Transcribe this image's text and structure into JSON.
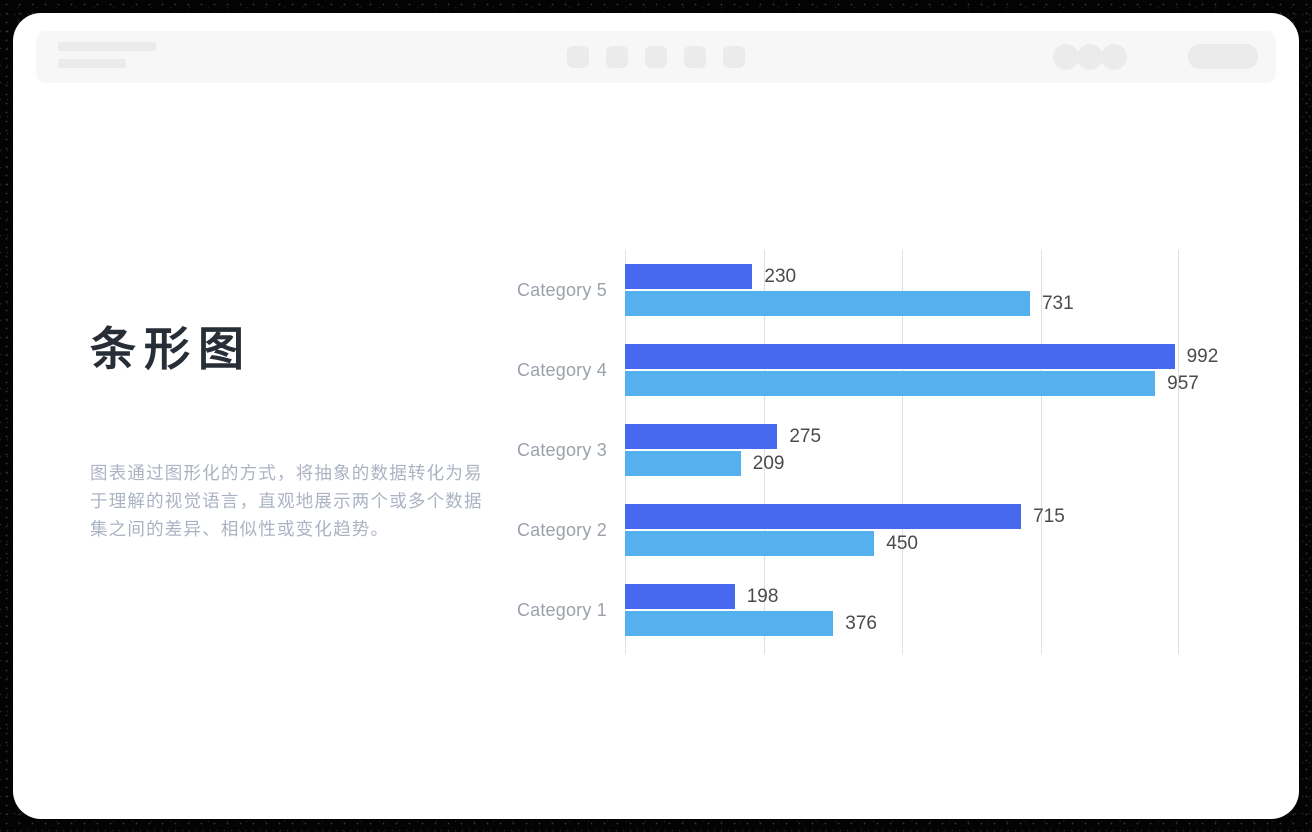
{
  "panel": {
    "title": "条形图",
    "description": "图表通过图形化的方式，将抽象的数据转化为易于理解的视觉语言，直观地展示两个或多个数据集之间的差异、相似性或变化趋势。"
  },
  "toolbar": {
    "title_line_count": 2,
    "menu_button_count": 5,
    "avatar_count": 3
  },
  "chart_data": {
    "type": "bar",
    "orientation": "horizontal",
    "category_order": "top-to-bottom",
    "categories": [
      "Category 5",
      "Category 4",
      "Category 3",
      "Category 2",
      "Category 1"
    ],
    "series": [
      {
        "name": "series-a",
        "color": "#4669f0",
        "values": [
          230,
          992,
          275,
          715,
          198
        ]
      },
      {
        "name": "series-b",
        "color": "#55b1ed",
        "values": [
          731,
          957,
          209,
          450,
          376
        ]
      }
    ],
    "xlim": [
      0,
      1000
    ],
    "gridlines": [
      0,
      250,
      500,
      750,
      1000
    ],
    "value_labels": true,
    "legend": "none",
    "grid_color": "#e0e0e0",
    "category_label_color": "#9ba2ab",
    "value_label_color": "#4b4b4b",
    "title_color": "#272e37",
    "description_color": "#abb3c3"
  }
}
